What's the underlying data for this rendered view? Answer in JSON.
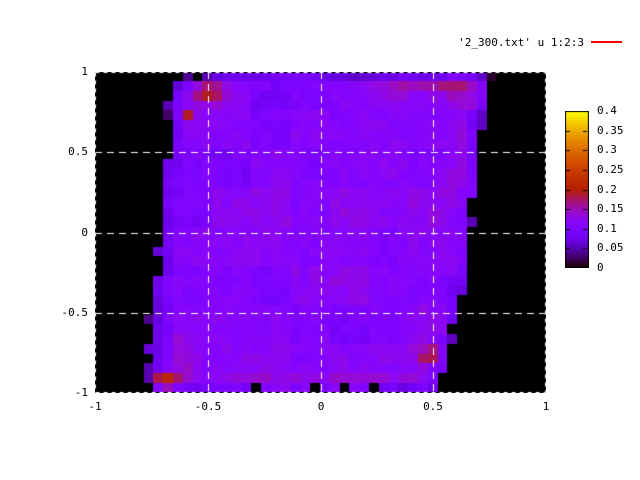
{
  "window": {
    "kind": "gnuplot plot window",
    "background": "#ffffff"
  },
  "legend": {
    "label": "'2_300.txt' u 1:2:3",
    "line_color": "#ff0000"
  },
  "colors": {
    "page_background": "#ffffff",
    "plot_background": "#000000",
    "grid": "#ffffff",
    "border": "#000000",
    "text": "#000000",
    "legend_line": "#ff0000"
  },
  "chart_data": {
    "type": "heatmap",
    "title": "",
    "source_label": "'2_300.txt' u 1:2:3",
    "xlabel": "",
    "ylabel": "",
    "xlim": [
      -1,
      1
    ],
    "ylim": [
      -1,
      1
    ],
    "grid": true,
    "x_tick_values": [
      -1,
      -0.5,
      0,
      0.5,
      1
    ],
    "x_tick_labels": [
      "-1",
      "-0.5",
      "0",
      "0.5",
      "1"
    ],
    "y_tick_values": [
      1,
      0.5,
      0,
      -0.5,
      -1
    ],
    "y_tick_labels": [
      "1",
      "0.5",
      "0",
      "-0.5",
      "-1"
    ],
    "colorbar": {
      "min": 0,
      "max": 0.4,
      "tick_values": [
        0,
        0.05,
        0.1,
        0.15,
        0.2,
        0.25,
        0.3,
        0.35,
        0.4
      ],
      "tick_labels": [
        "0",
        "0.05",
        "0.1",
        "0.15",
        "0.2",
        "0.25",
        "0.3",
        "0.35",
        "0.4"
      ],
      "palette": "gnuplot pm3d default (rgbformulae 7,5,15): black - purple - red - orange - yellow"
    },
    "description": "Dense pm3d map: slightly tilted square data region of mostly violet cells (value ~0.1) on black (no data / 0) background, with red hot spots near the top-left corner, along the top edge, at the bottom-left corner and lower-right edge.",
    "grid_cols": 46,
    "grid_rows": 33,
    "cell_seed": 7,
    "base_value": 0.102,
    "region_polygon": [
      [
        -0.503,
        0.994
      ],
      [
        0.756,
        0.994
      ],
      [
        0.698,
        0.514
      ],
      [
        0.663,
        0.016
      ],
      [
        0.632,
        -0.358
      ],
      [
        0.596,
        -0.607
      ],
      [
        0.517,
        -0.987
      ],
      [
        -0.756,
        -0.987
      ],
      [
        -0.765,
        -0.67
      ],
      [
        -0.721,
        -0.234
      ],
      [
        -0.676,
        0.451
      ],
      [
        -0.659,
        0.9
      ]
    ],
    "top_edge_darken": {
      "y_above": 0.95,
      "delta": -0.035
    },
    "hotspots": [
      {
        "x": -0.49,
        "y": 0.87,
        "sx": 0.05,
        "sy": 0.05,
        "a": 0.1
      },
      {
        "x": -0.585,
        "y": 0.71,
        "sx": 0.022,
        "sy": 0.022,
        "a": 0.1
      },
      {
        "x": -0.15,
        "y": 0.965,
        "sx": 0.17,
        "sy": 0.025,
        "a": 0.05
      },
      {
        "x": 0.53,
        "y": 0.93,
        "sx": 0.14,
        "sy": 0.05,
        "a": 0.055
      },
      {
        "x": 0.63,
        "y": 0.4,
        "sx": 0.05,
        "sy": 0.3,
        "a": 0.03
      },
      {
        "x": -0.69,
        "y": -0.92,
        "sx": 0.035,
        "sy": 0.035,
        "a": 0.135
      },
      {
        "x": 0.48,
        "y": -0.77,
        "sx": 0.035,
        "sy": 0.045,
        "a": 0.075
      },
      {
        "x": -0.05,
        "y": -0.94,
        "sx": 0.55,
        "sy": 0.05,
        "a": 0.022
      },
      {
        "x": 0.3,
        "y": 0.15,
        "sx": 0.4,
        "sy": 0.45,
        "a": 0.012
      },
      {
        "x": -0.6,
        "y": -0.8,
        "sx": 0.05,
        "sy": 0.12,
        "a": 0.03
      }
    ]
  }
}
